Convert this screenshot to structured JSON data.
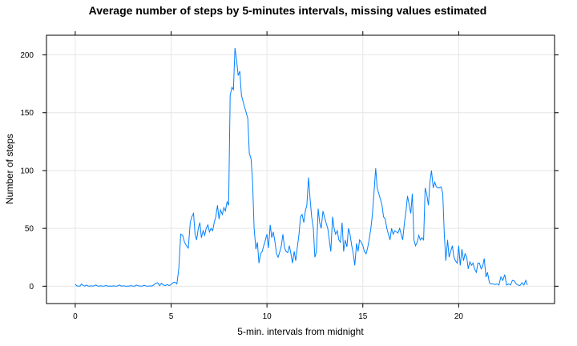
{
  "chart_data": {
    "type": "line",
    "title": "Average number of steps by 5-minutes intervals, missing values estimated",
    "xlabel": "5-min. intervals from midnight",
    "ylabel": "Number of steps",
    "xlim": [
      -1.5,
      25
    ],
    "ylim": [
      -15,
      217
    ],
    "xticks": [
      0,
      5,
      10,
      15,
      20
    ],
    "xtick_labels": [
      "0",
      "5",
      "10",
      "15",
      "20"
    ],
    "yticks": [
      0,
      50,
      100,
      150,
      200
    ],
    "ytick_labels": [
      "0",
      "50",
      "100",
      "150",
      "200"
    ],
    "grid": true,
    "line_color": "#0080ff",
    "series": [
      {
        "x": [
          0.0,
          0.08,
          0.17,
          0.25,
          0.33,
          0.42,
          0.5,
          0.58,
          0.67,
          0.75,
          0.83,
          0.92,
          1.0,
          1.08,
          1.17,
          1.25,
          1.33,
          1.42,
          1.5,
          1.6,
          1.7,
          1.8,
          1.9,
          2.0,
          2.1,
          2.2,
          2.3,
          2.4,
          2.5,
          2.6,
          2.7,
          2.8,
          2.9,
          3.0,
          3.1,
          3.2,
          3.3,
          3.4,
          3.5,
          3.6,
          3.7,
          3.8,
          3.9,
          4.0,
          4.1,
          4.2,
          4.3,
          4.4,
          4.5,
          4.6,
          4.7,
          4.8,
          4.9,
          5.0,
          5.1,
          5.2,
          5.3,
          5.4,
          5.5,
          5.6,
          5.7,
          5.8,
          5.9,
          6.0,
          6.08,
          6.17,
          6.25,
          6.33,
          6.42,
          6.5,
          6.58,
          6.67,
          6.75,
          6.83,
          6.92,
          7.0,
          7.08,
          7.17,
          7.25,
          7.33,
          7.42,
          7.5,
          7.58,
          7.67,
          7.75,
          7.83,
          7.92,
          8.0,
          8.08,
          8.17,
          8.25,
          8.33,
          8.42,
          8.5,
          8.58,
          8.67,
          8.75,
          8.83,
          8.92,
          9.0,
          9.08,
          9.17,
          9.25,
          9.33,
          9.42,
          9.5,
          9.58,
          9.67,
          9.75,
          9.83,
          9.92,
          10.0,
          10.08,
          10.17,
          10.25,
          10.33,
          10.42,
          10.5,
          10.58,
          10.67,
          10.75,
          10.83,
          10.92,
          11.0,
          11.08,
          11.17,
          11.25,
          11.33,
          11.42,
          11.5,
          11.58,
          11.67,
          11.75,
          11.83,
          11.92,
          12.0,
          12.08,
          12.17,
          12.25,
          12.33,
          12.42,
          12.5,
          12.58,
          12.67,
          12.75,
          12.83,
          12.92,
          13.0,
          13.08,
          13.17,
          13.25,
          13.33,
          13.42,
          13.5,
          13.58,
          13.67,
          13.75,
          13.83,
          13.92,
          14.0,
          14.08,
          14.17,
          14.25,
          14.33,
          14.42,
          14.5,
          14.58,
          14.67,
          14.75,
          14.83,
          14.92,
          15.0,
          15.08,
          15.17,
          15.25,
          15.33,
          15.42,
          15.5,
          15.58,
          15.67,
          15.75,
          15.83,
          15.92,
          16.0,
          16.08,
          16.17,
          16.25,
          16.33,
          16.42,
          16.5,
          16.58,
          16.67,
          16.75,
          16.83,
          16.92,
          17.0,
          17.08,
          17.17,
          17.25,
          17.33,
          17.42,
          17.5,
          17.58,
          17.67,
          17.75,
          17.83,
          17.92,
          18.0,
          18.08,
          18.17,
          18.25,
          18.33,
          18.42,
          18.5,
          18.58,
          18.67,
          18.75,
          18.83,
          18.92,
          19.0,
          19.08,
          19.17,
          19.25,
          19.33,
          19.42,
          19.5,
          19.58,
          19.67,
          19.75,
          19.83,
          19.92,
          20.0,
          20.08,
          20.17,
          20.25,
          20.33,
          20.42,
          20.5,
          20.58,
          20.67,
          20.75,
          20.83,
          20.92,
          21.0,
          21.08,
          21.17,
          21.25,
          21.33,
          21.42,
          21.5,
          21.6,
          21.7,
          21.8,
          21.9,
          22.0,
          22.1,
          22.2,
          22.3,
          22.4,
          22.5,
          22.6,
          22.7,
          22.8,
          22.9,
          23.0,
          23.1,
          23.2,
          23.3,
          23.4,
          23.5,
          23.58
        ],
        "y": [
          1.7,
          0.3,
          0.1,
          0.2,
          2.0,
          0.5,
          0.1,
          1.0,
          0.2,
          0.1,
          0.3,
          0.1,
          0.5,
          1.1,
          0.2,
          0.1,
          0.4,
          0.1,
          0.2,
          0.6,
          0.1,
          0.2,
          0.1,
          0.3,
          0.1,
          0.2,
          1.1,
          0.1,
          0.3,
          0.2,
          0.1,
          0.1,
          0.5,
          0.2,
          0.1,
          1.0,
          0.3,
          0.2,
          0.1,
          0.8,
          0.2,
          0.1,
          0.3,
          0.1,
          1.2,
          2.5,
          3.0,
          0.5,
          2.5,
          1.0,
          0.5,
          1.5,
          0.5,
          1.5,
          3.0,
          3.5,
          2.0,
          15.0,
          45.0,
          44.0,
          38.0,
          35.0,
          33.0,
          55.0,
          60.0,
          63.0,
          45.0,
          40.0,
          50.0,
          55.0,
          42.0,
          48.0,
          44.0,
          50.0,
          53.0,
          47.0,
          50.0,
          48.0,
          55.0,
          60.0,
          70.0,
          58.0,
          66.0,
          62.0,
          68.0,
          65.0,
          73.0,
          70.0,
          165.0,
          172.0,
          170.0,
          206.0,
          195.0,
          182.0,
          186.0,
          165.0,
          160.0,
          155.0,
          150.0,
          145.0,
          115.0,
          110.0,
          90.0,
          50.0,
          32.0,
          38.0,
          20.0,
          28.0,
          30.0,
          35.0,
          40.0,
          45.0,
          33.0,
          53.0,
          42.0,
          47.0,
          38.0,
          28.0,
          25.0,
          30.0,
          35.0,
          45.0,
          33.0,
          30.0,
          29.0,
          35.0,
          28.0,
          20.0,
          30.0,
          22.0,
          33.0,
          45.0,
          60.0,
          62.0,
          55.0,
          65.0,
          70.0,
          94.0,
          75.0,
          60.0,
          50.0,
          25.0,
          30.0,
          67.0,
          55.0,
          50.0,
          65.0,
          60.0,
          55.0,
          50.0,
          40.0,
          30.0,
          60.0,
          50.0,
          45.0,
          48.0,
          40.0,
          38.0,
          55.0,
          30.0,
          40.0,
          34.0,
          50.0,
          45.0,
          35.0,
          28.0,
          18.0,
          37.0,
          30.0,
          40.0,
          38.0,
          35.0,
          30.0,
          28.0,
          33.0,
          40.0,
          50.0,
          62.0,
          80.0,
          102.0,
          85.0,
          80.0,
          75.0,
          70.0,
          60.0,
          58.0,
          50.0,
          45.0,
          40.0,
          50.0,
          45.0,
          48.0,
          47.0,
          46.0,
          50.0,
          45.0,
          40.0,
          55.0,
          65.0,
          78.0,
          70.0,
          63.0,
          80.0,
          40.0,
          35.0,
          38.0,
          44.0,
          40.0,
          42.0,
          40.0,
          85.0,
          80.0,
          70.0,
          90.0,
          100.0,
          85.0,
          90.0,
          86.0,
          85.0,
          85.0,
          86.0,
          80.0,
          45.0,
          22.0,
          40.0,
          25.0,
          30.0,
          35.0,
          25.0,
          22.0,
          20.0,
          35.0,
          18.0,
          32.0,
          22.0,
          28.0,
          25.0,
          15.0,
          21.0,
          18.0,
          20.0,
          15.0,
          12.0,
          20.0,
          20.0,
          15.0,
          17.0,
          24.0,
          8.0,
          12.0,
          3.0,
          2.0,
          2.0,
          1.5,
          2.0,
          1.0,
          8.0,
          5.0,
          10.0,
          1.0,
          2.0,
          1.0,
          5.0,
          4.5,
          2.0,
          1.0,
          0.5,
          3.0,
          1.0,
          5.0,
          1.0
        ]
      }
    ]
  }
}
